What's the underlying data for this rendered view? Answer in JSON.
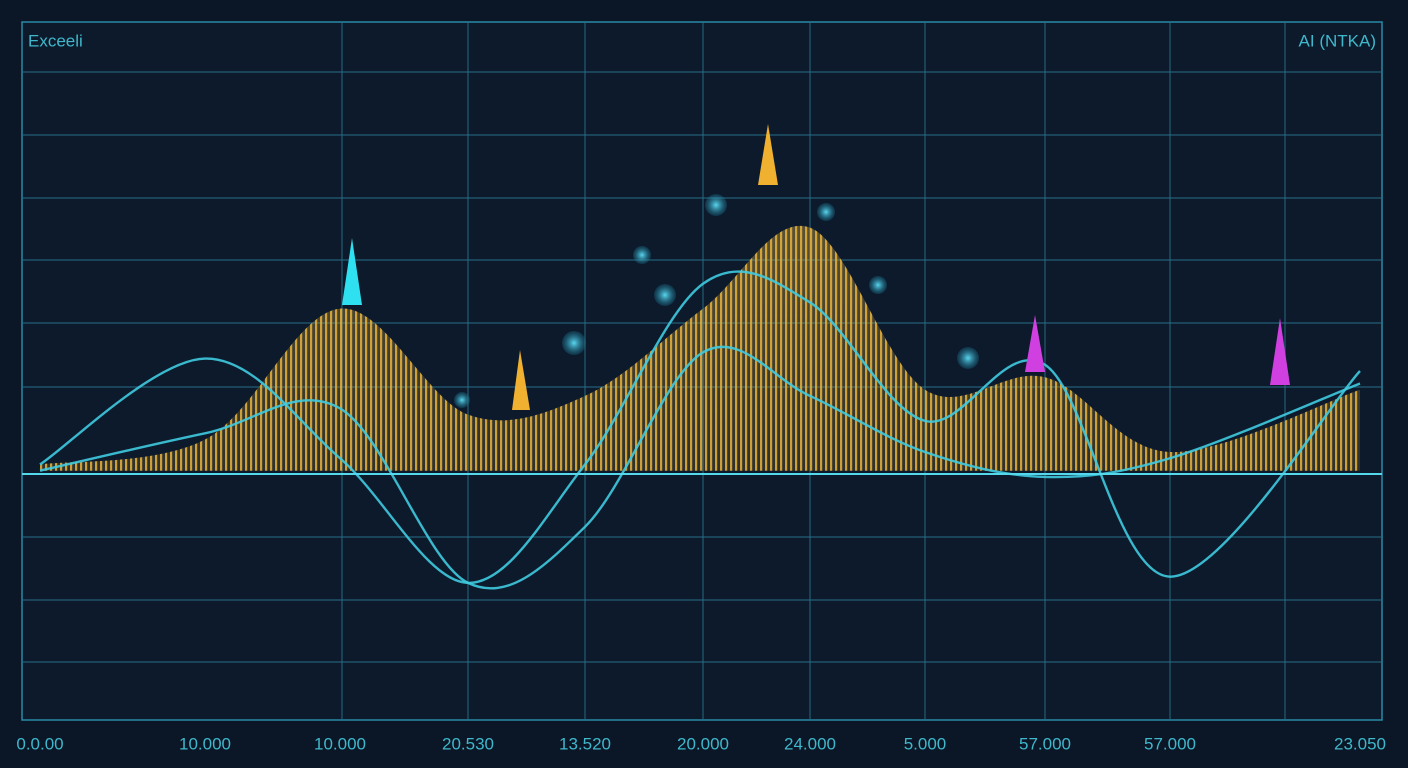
{
  "chart_data": {
    "type": "line",
    "header_left": "Exceeli",
    "header_right": "AI (NTKA)",
    "categories": [
      "0.0.00",
      "10.000",
      "10.000",
      "20.530",
      "13.520",
      "20.000",
      "24.000",
      "5.000",
      "57.000",
      "57.000",
      "23.050"
    ],
    "ylim": [
      -4,
      7.2
    ],
    "series": [
      {
        "color": "#e0a92e",
        "fill": "area",
        "values": [
          0.1,
          0.5,
          2.6,
          0.9,
          1.2,
          2.6,
          3.9,
          1.3,
          1.5,
          0.3,
          1.3
        ]
      },
      {
        "color": "#3fcbe0",
        "values": [
          0.1,
          1.8,
          0.2,
          -1.8,
          0.1,
          3.0,
          2.7,
          0.8,
          1.7,
          -1.7,
          1.6
        ]
      },
      {
        "color": "#3fcbe0",
        "values": [
          0,
          0.6,
          1.0,
          -1.8,
          -0.9,
          1.9,
          1.2,
          0.3,
          -0.1,
          0.2,
          1.4
        ]
      }
    ]
  }
}
